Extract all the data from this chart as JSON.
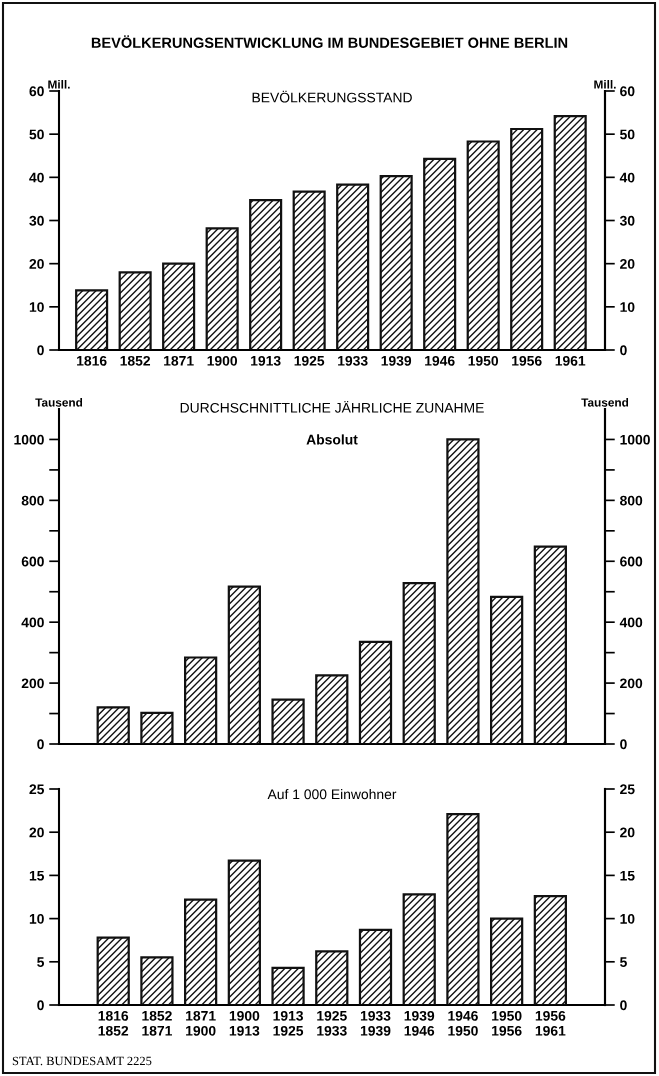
{
  "chart_data": [
    {
      "type": "bar",
      "title": "BEVÖLKERUNGSENTWICKLUNG IM BUNDESGEBIET OHNE BERLIN",
      "subtitle": "BEVÖLKERUNGSSTAND",
      "ylabel": "Mill.",
      "y2label": "Mill.",
      "categories": [
        "1816",
        "1852",
        "1871",
        "1900",
        "1913",
        "1925",
        "1933",
        "1939",
        "1946",
        "1950",
        "1956",
        "1961"
      ],
      "values": [
        13.8,
        18,
        20,
        28.2,
        34.7,
        36.7,
        38.3,
        40.3,
        44.3,
        48.3,
        51.2,
        54.2
      ],
      "color": "#111111",
      "ylim": [
        0,
        60
      ],
      "yticks": [
        0,
        10,
        20,
        30,
        40,
        50,
        60
      ],
      "y2lim": [
        0,
        60
      ],
      "y2ticks": [
        0,
        10,
        20,
        30,
        40,
        50,
        60
      ]
    },
    {
      "type": "bar",
      "title": "DURCHSCHNITTLICHE JÄHRLICHE ZUNAHME",
      "subtitle": "Absolut",
      "ylabel": "Tausend",
      "y2label": "Tausend",
      "categories": [
        null,
        null,
        null,
        null,
        null,
        null,
        null,
        null,
        null,
        null,
        null
      ],
      "values": [
        120,
        102,
        284,
        517,
        146,
        225,
        335,
        528,
        1000,
        483,
        648
      ],
      "color": "#111111",
      "ylim": [
        0,
        1100
      ],
      "yticks": [
        0,
        {
          "value": 100,
          "label": null
        },
        200,
        {
          "value": 300,
          "label": null
        },
        400,
        {
          "value": 500,
          "label": null
        },
        600,
        {
          "value": 700,
          "label": null
        },
        800,
        {
          "value": 900,
          "label": null
        },
        1000
      ],
      "y2lim": [
        0,
        1100
      ],
      "y2ticks": [
        0,
        {
          "value": 100,
          "label": null
        },
        200,
        {
          "value": 300,
          "label": null
        },
        400,
        {
          "value": 500,
          "label": null
        },
        600,
        {
          "value": 700,
          "label": null
        },
        800,
        {
          "value": 900,
          "label": null
        },
        1000
      ]
    },
    {
      "type": "bar",
      "title": "Auf 1 000 Einwohner",
      "categories": [
        "1816\n1852",
        "1852\n1871",
        "1871\n1900",
        "1900\n1913",
        "1913\n1925",
        "1925\n1933",
        "1933\n1939",
        "1939\n1946",
        "1946\n1950",
        "1950\n1956",
        "1956\n1961"
      ],
      "values": [
        7.8,
        5.5,
        12.2,
        16.7,
        4.3,
        6.2,
        8.7,
        12.8,
        22.1,
        10.0,
        12.6
      ],
      "color": "#111111",
      "ylim": [
        0,
        25
      ],
      "yticks": [
        0,
        5,
        10,
        15,
        20,
        25
      ],
      "y2lim": [
        0,
        25
      ],
      "y2ticks": [
        0,
        5,
        10,
        15,
        20,
        25
      ],
      "annotations": [
        "STAT. BUNDESAMT 2225"
      ]
    }
  ]
}
